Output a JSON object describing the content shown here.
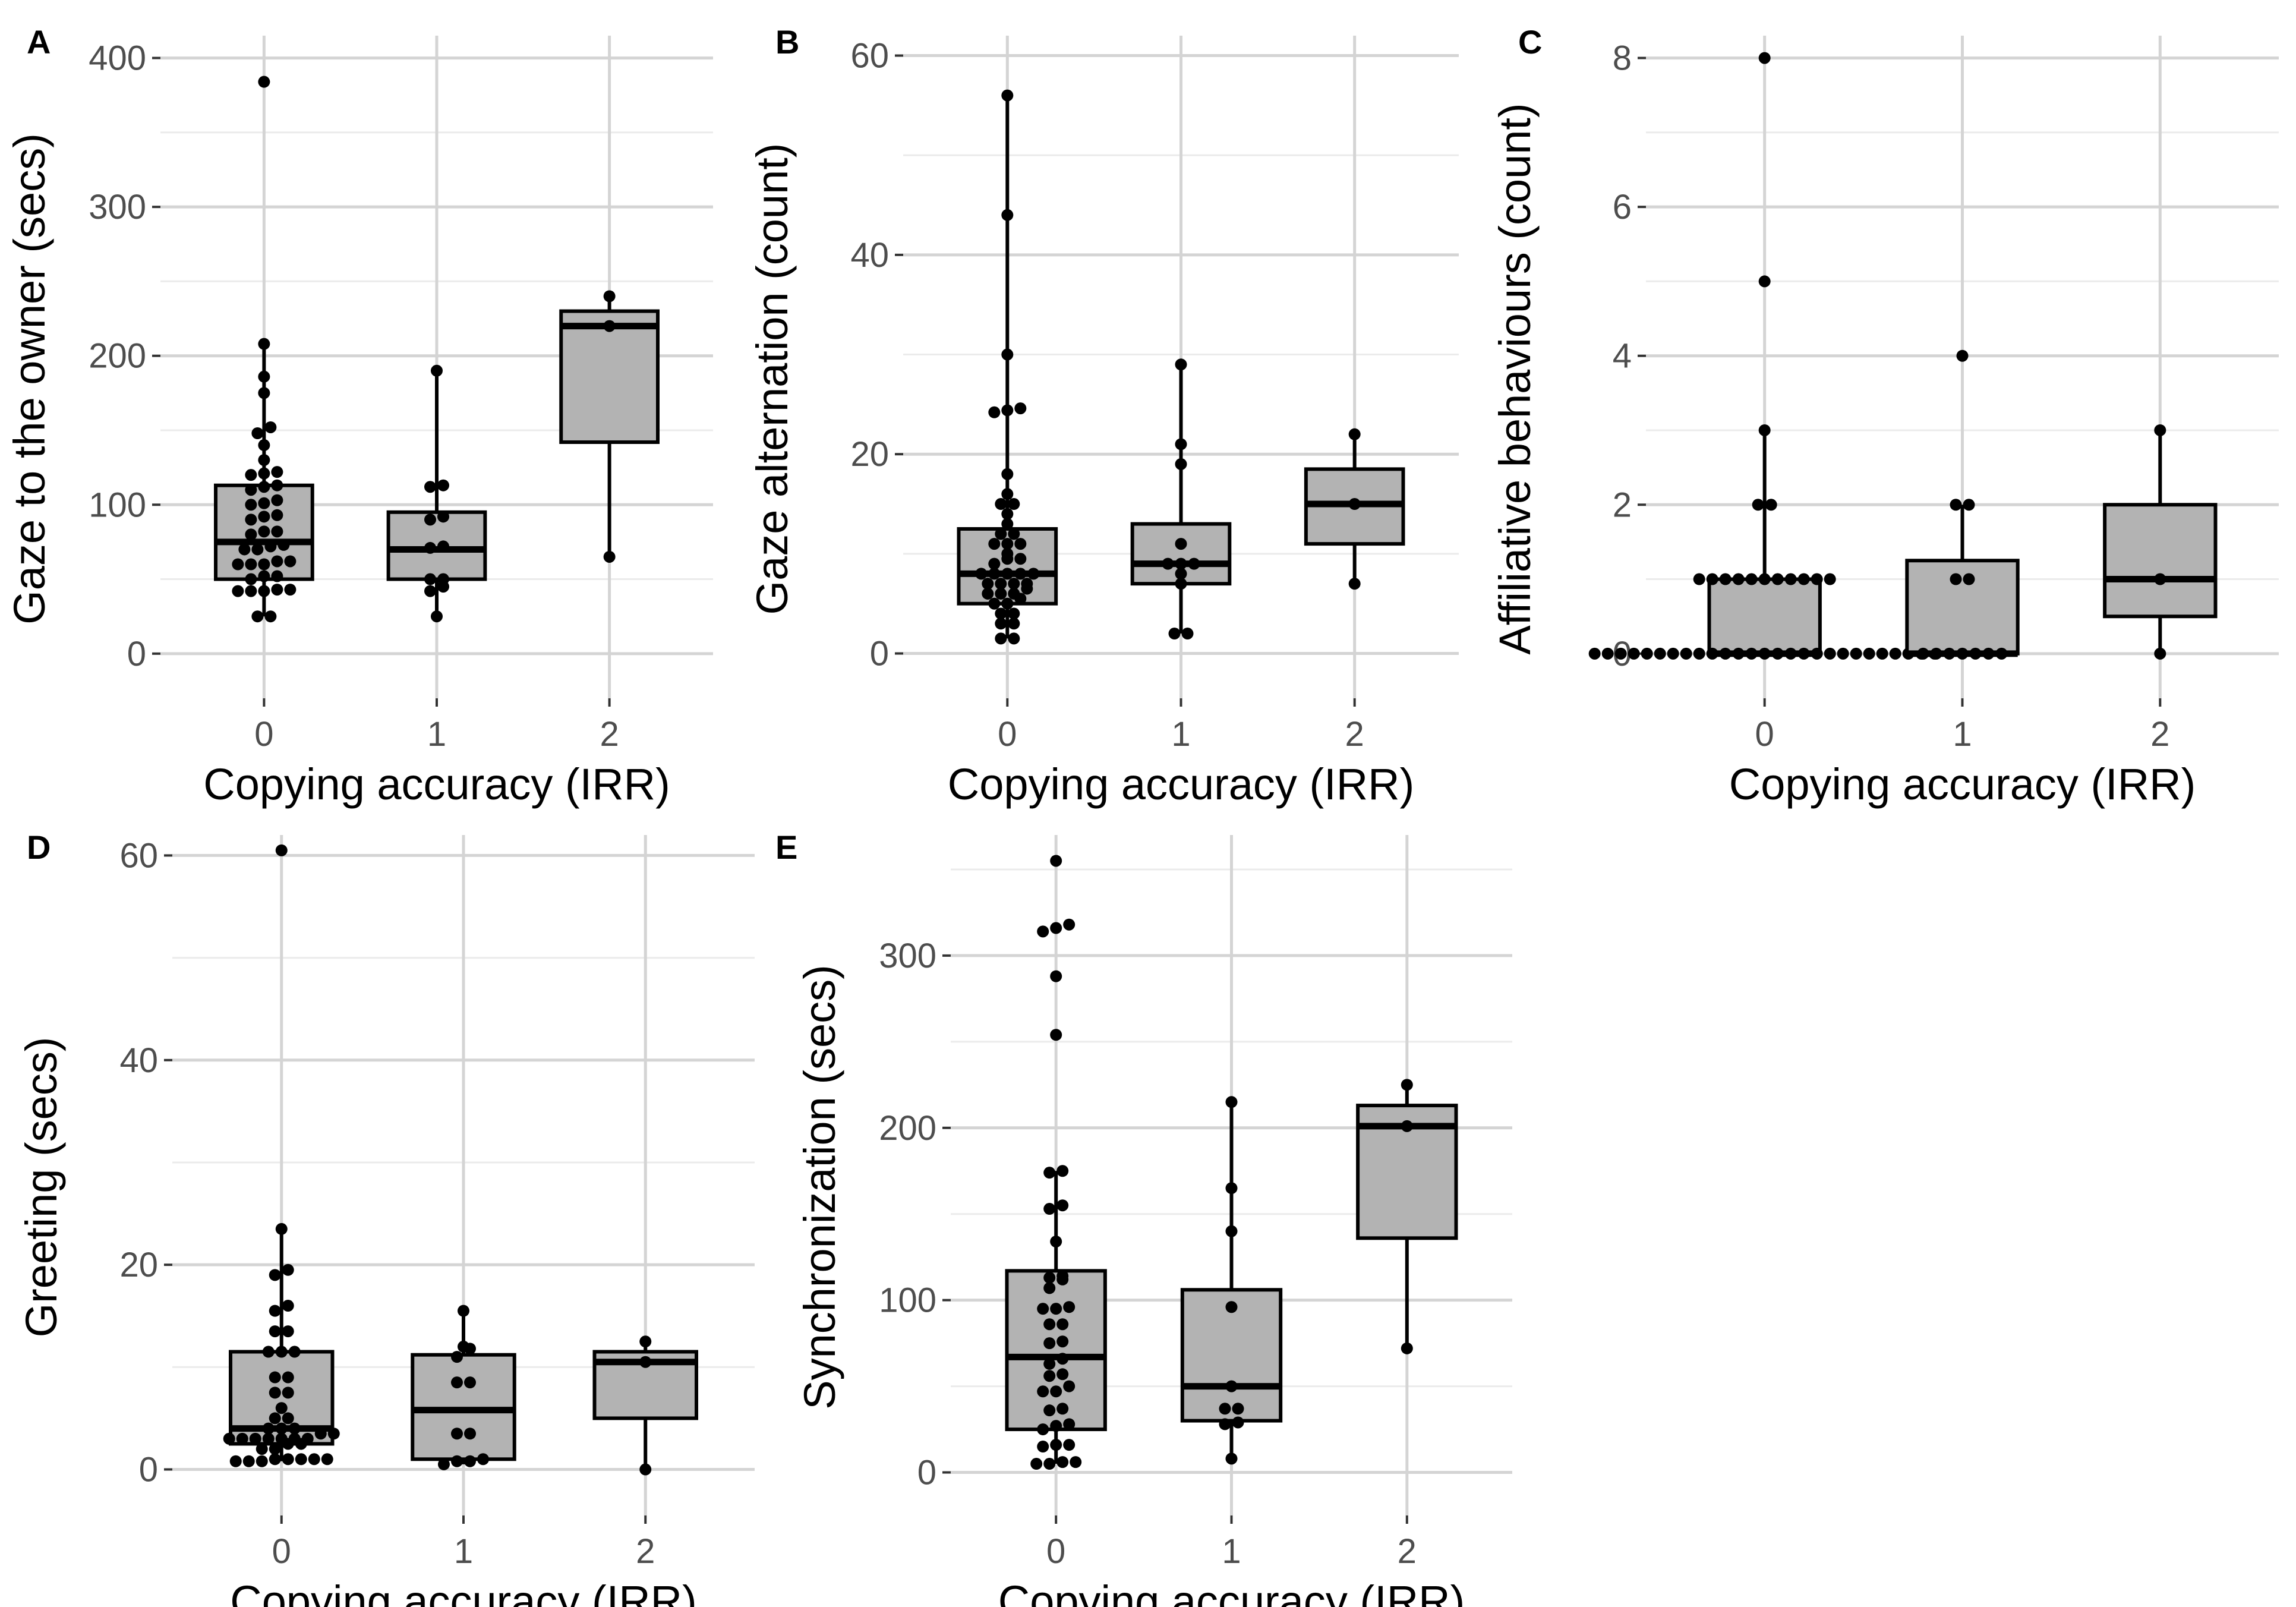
{
  "chart_data": [
    {
      "panel": "A",
      "type": "boxplot",
      "xlabel": "Copying accuracy (IRR)",
      "ylabel": "Gaze to the owner (secs)",
      "categories": [
        "0",
        "1",
        "2"
      ],
      "ylim": [
        -30,
        415
      ],
      "yticks": [
        0,
        100,
        200,
        300,
        400
      ],
      "boxes": [
        {
          "category": "0",
          "whisker_low": 25,
          "q1": 50,
          "median": 75,
          "q3": 113,
          "whisker_high": 208,
          "points": [
            384,
            208,
            186,
            175,
            152,
            148,
            140,
            130,
            122,
            121,
            120,
            113,
            112,
            110,
            103,
            101,
            100,
            93,
            90,
            92,
            82,
            82,
            80,
            73,
            72,
            70,
            70,
            62,
            62,
            60,
            60,
            60,
            52,
            52,
            50,
            43,
            42,
            43,
            42,
            42,
            25,
            25
          ]
        },
        {
          "category": "1",
          "whisker_low": 25,
          "q1": 50,
          "median": 70,
          "q3": 95,
          "whisker_high": 190,
          "points": [
            190,
            113,
            112,
            92,
            90,
            72,
            71,
            50,
            50,
            45,
            42,
            25
          ]
        },
        {
          "category": "2",
          "whisker_low": 65,
          "q1": 142,
          "median": 220,
          "q3": 230,
          "whisker_high": 240,
          "points": [
            240,
            220,
            65
          ]
        }
      ]
    },
    {
      "panel": "B",
      "type": "boxplot",
      "xlabel": "Copying accuracy (IRR)",
      "ylabel": "Gaze alternation (count)",
      "categories": [
        "0",
        "1",
        "2"
      ],
      "ylim": [
        -4.5,
        62
      ],
      "yticks": [
        0,
        20,
        40,
        60
      ],
      "boxes": [
        {
          "category": "0",
          "whisker_low": 1.5,
          "q1": 5,
          "median": 8,
          "q3": 12.5,
          "whisker_high": 56,
          "points": [
            56,
            44,
            30,
            24.6,
            24.4,
            24.2,
            18,
            16,
            15,
            15,
            14,
            13,
            12,
            12,
            11,
            11,
            11,
            10,
            9.5,
            9.5,
            9,
            8,
            8,
            8,
            8,
            8,
            7,
            7,
            7,
            7,
            6.5,
            6,
            6,
            6,
            5.5,
            5,
            5,
            4,
            4,
            3,
            3,
            1.5,
            1.5
          ]
        },
        {
          "category": "1",
          "whisker_low": 2,
          "q1": 7,
          "median": 9,
          "q3": 13,
          "whisker_high": 29,
          "points": [
            29,
            21,
            19,
            11,
            9,
            9,
            9,
            8,
            7,
            2,
            2
          ]
        },
        {
          "category": "2",
          "whisker_low": 7,
          "q1": 11,
          "median": 15,
          "q3": 18.5,
          "whisker_high": 22,
          "points": [
            22,
            15,
            7
          ]
        }
      ]
    },
    {
      "panel": "C",
      "type": "boxplot",
      "xlabel": "Copying accuracy (IRR)",
      "ylabel": "Affiliative behaviours (count)",
      "categories": [
        "0",
        "1",
        "2"
      ],
      "ylim": [
        -0.6,
        8.3
      ],
      "yticks": [
        0,
        2,
        4,
        6,
        8
      ],
      "boxes": [
        {
          "category": "0",
          "whisker_low": 0,
          "q1": 0,
          "median": 0,
          "q3": 1,
          "whisker_high": 3,
          "points": [
            8,
            5,
            3,
            2,
            2,
            1,
            1,
            1,
            1,
            1,
            1,
            1,
            1,
            1,
            1,
            1,
            0,
            0,
            0,
            0,
            0,
            0,
            0,
            0,
            0,
            0,
            0,
            0,
            0,
            0,
            0,
            0,
            0,
            0,
            0,
            0,
            0,
            0,
            0,
            0,
            0,
            0,
            0
          ]
        },
        {
          "category": "1",
          "whisker_low": 0,
          "q1": 0,
          "median": 0,
          "q3": 1.25,
          "whisker_high": 2,
          "points": [
            4,
            2,
            2,
            1,
            1,
            0,
            0,
            0,
            0,
            0,
            0,
            0
          ]
        },
        {
          "category": "2",
          "whisker_low": 0,
          "q1": 0.5,
          "median": 1,
          "q3": 2,
          "whisker_high": 3,
          "points": [
            3,
            1,
            0
          ]
        }
      ]
    },
    {
      "panel": "D",
      "type": "boxplot",
      "xlabel": "Copying accuracy (IRR)",
      "ylabel": "Greeting (secs)",
      "categories": [
        "0",
        "1",
        "2"
      ],
      "ylim": [
        -4.5,
        62
      ],
      "yticks": [
        0,
        20,
        40,
        60
      ],
      "boxes": [
        {
          "category": "0",
          "whisker_low": 0.8,
          "q1": 2.5,
          "median": 4,
          "q3": 11.5,
          "whisker_high": 23.5,
          "points": [
            60.5,
            23.5,
            19.5,
            19,
            16,
            15.5,
            13.5,
            13.5,
            11.5,
            11.5,
            11.5,
            9,
            9,
            7.5,
            7.5,
            6,
            5,
            5,
            4,
            4,
            4,
            3.5,
            3.5,
            3,
            3,
            3,
            3,
            3,
            3,
            3,
            2.5,
            2.5,
            2,
            2,
            1,
            1,
            1,
            1,
            1,
            0.8,
            0.8,
            0.8
          ]
        },
        {
          "category": "1",
          "whisker_low": 0.5,
          "q1": 1,
          "median": 5.8,
          "q3": 11.2,
          "whisker_high": 15.5,
          "points": [
            15.5,
            12,
            11.8,
            11,
            8.5,
            8.5,
            3.5,
            3.5,
            1,
            0.8,
            0.8,
            0.5
          ]
        },
        {
          "category": "2",
          "whisker_low": 0,
          "q1": 5,
          "median": 10.5,
          "q3": 11.5,
          "whisker_high": 12.5,
          "points": [
            12.5,
            10.5,
            0
          ]
        }
      ]
    },
    {
      "panel": "E",
      "type": "boxplot",
      "xlabel": "Copying accuracy (IRR)",
      "ylabel": "Synchronization (secs)",
      "categories": [
        "0",
        "1",
        "2"
      ],
      "ylim": [
        -25,
        370
      ],
      "yticks": [
        0,
        100,
        200,
        300
      ],
      "boxes": [
        {
          "category": "0",
          "whisker_low": 5,
          "q1": 25,
          "median": 67,
          "q3": 117,
          "whisker_high": 175,
          "points": [
            355,
            318,
            316,
            314,
            288,
            254,
            175,
            174,
            155,
            153,
            134,
            114,
            113,
            112,
            107,
            96,
            95,
            95,
            86,
            86,
            76,
            75,
            66,
            63,
            57,
            56,
            50,
            47,
            47,
            37,
            36,
            28,
            27,
            25,
            16,
            16,
            15,
            6,
            6,
            5,
            5
          ]
        },
        {
          "category": "1",
          "whisker_low": 8,
          "q1": 30,
          "median": 50,
          "q3": 106,
          "whisker_high": 215,
          "points": [
            215,
            165,
            140,
            96,
            50,
            37,
            37,
            29,
            28,
            8
          ]
        },
        {
          "category": "2",
          "whisker_low": 72,
          "q1": 136,
          "median": 201,
          "q3": 213,
          "whisker_high": 225,
          "points": [
            225,
            201,
            72
          ]
        }
      ]
    }
  ]
}
